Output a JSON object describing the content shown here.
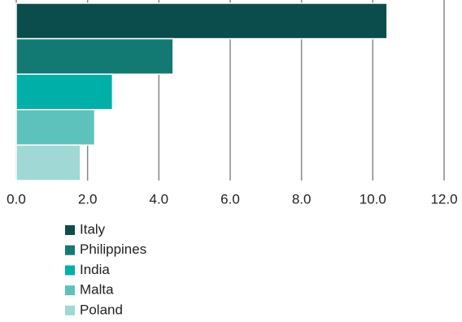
{
  "chart_data": {
    "type": "bar",
    "orientation": "horizontal",
    "series": [
      {
        "name": "Italy",
        "color": "#0b4d4d",
        "values": [
          10.4
        ]
      },
      {
        "name": "Philippines",
        "color": "#127a72",
        "values": [
          4.4
        ]
      },
      {
        "name": "India",
        "color": "#00b0a8",
        "values": [
          2.7
        ]
      },
      {
        "name": "Malta",
        "color": "#5dc2bb",
        "values": [
          2.2
        ]
      },
      {
        "name": "Poland",
        "color": "#9fd8d5",
        "values": [
          1.8
        ]
      }
    ],
    "xlim": [
      0,
      12
    ],
    "xticks": [
      {
        "value": 0,
        "label": "0.0"
      },
      {
        "value": 2,
        "label": "2.0"
      },
      {
        "value": 4,
        "label": "4.0"
      },
      {
        "value": 6,
        "label": "6.0"
      },
      {
        "value": 8,
        "label": "8.0"
      },
      {
        "value": 10,
        "label": "10.0"
      },
      {
        "value": 12,
        "label": "12.0"
      }
    ],
    "grid": true,
    "legend": "bottom"
  }
}
